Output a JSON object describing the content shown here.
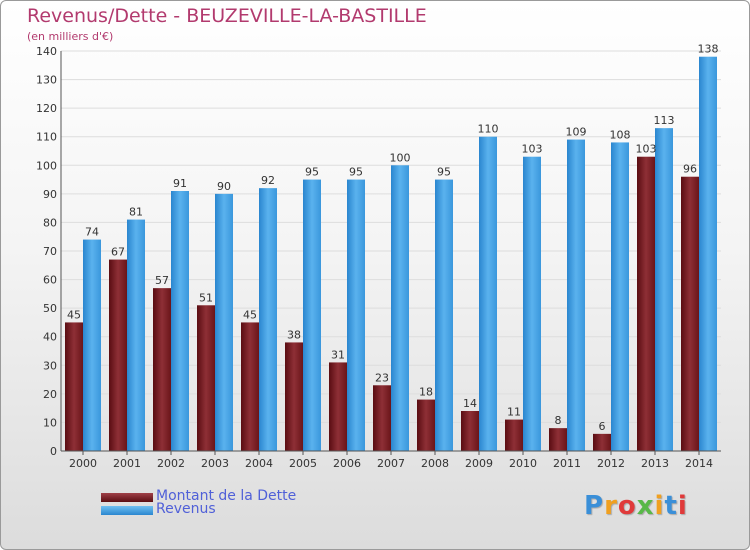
{
  "header": {
    "title": "Revenus/Dette - BEUZEVILLE-LA-BASTILLE",
    "subtitle": "(en milliers d'€)"
  },
  "colors": {
    "title": "#b23a6e",
    "dette": "#7a1f26",
    "revenus": "#3d9ce0",
    "legend_text": "#5060d8"
  },
  "legend": [
    {
      "label": "Montant de la Dette",
      "color": "#7a1f26"
    },
    {
      "label": "Revenus",
      "color": "#3d9ce0"
    }
  ],
  "logo": {
    "text": "Proxiti"
  },
  "chart_data": {
    "type": "bar",
    "title": "Revenus/Dette - BEUZEVILLE-LA-BASTILLE",
    "ylabel": "(en milliers d'€)",
    "xlabel": "",
    "ylim": [
      0,
      140
    ],
    "yticks": [
      0,
      10,
      20,
      30,
      40,
      50,
      60,
      70,
      80,
      90,
      100,
      110,
      120,
      130,
      140
    ],
    "grid": true,
    "legend_position": "bottom-left",
    "categories": [
      "2000",
      "2001",
      "2002",
      "2003",
      "2004",
      "2005",
      "2006",
      "2007",
      "2008",
      "2009",
      "2010",
      "2011",
      "2012",
      "2013",
      "2014"
    ],
    "series": [
      {
        "name": "Montant de la Dette",
        "values": [
          45,
          67,
          57,
          51,
          45,
          38,
          31,
          23,
          18,
          14,
          11,
          8,
          6,
          103,
          96
        ]
      },
      {
        "name": "Revenus",
        "values": [
          74,
          81,
          91,
          90,
          92,
          95,
          95,
          100,
          95,
          110,
          103,
          109,
          108,
          113,
          138
        ]
      }
    ]
  }
}
